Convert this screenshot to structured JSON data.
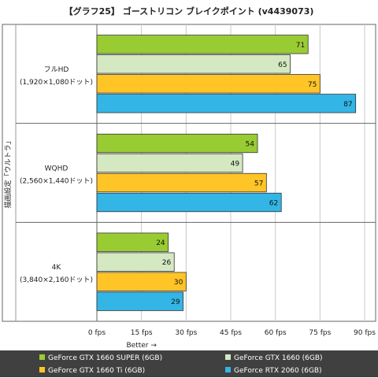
{
  "chart_data": {
    "type": "bar",
    "orientation": "horizontal",
    "title": "【グラフ25】 ゴーストリコン ブレイクポイント (v4439073)",
    "ylabel": "描画設定「ウルトラ」",
    "xlabel": "Better →",
    "categories": [
      {
        "line1": "フルHD",
        "line2": "(1,920×1,080ドット)"
      },
      {
        "line1": "WQHD",
        "line2": "(2,560×1,440ドット)"
      },
      {
        "line1": "4K",
        "line2": "(3,840×2,160ドット)"
      }
    ],
    "series": [
      {
        "name": "GeForce GTX 1660 SUPER (6GB)",
        "color": "#99cc33",
        "values": [
          71,
          54,
          24
        ]
      },
      {
        "name": "GeForce GTX 1660 (6GB)",
        "color": "#d4e8c2",
        "values": [
          65,
          49,
          26
        ]
      },
      {
        "name": "GeForce GTX 1660 Ti (6GB)",
        "color": "#ffc426",
        "values": [
          75,
          57,
          30
        ]
      },
      {
        "name": "GeForce RTX 2060 (6GB)",
        "color": "#33b5e5",
        "values": [
          87,
          62,
          29
        ]
      }
    ],
    "xlim": [
      0,
      90
    ],
    "xticks": [
      0,
      15,
      30,
      45,
      60,
      75,
      90
    ],
    "tick_suffix": " fps",
    "grid": true,
    "legend_position": "bottom",
    "legend_background": "#404040"
  }
}
